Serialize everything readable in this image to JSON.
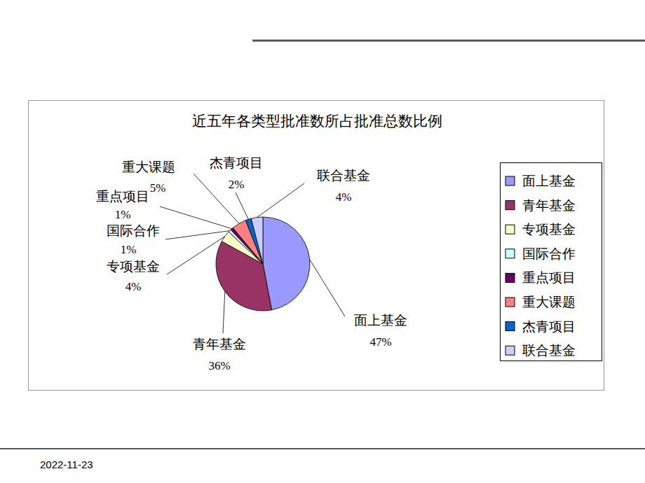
{
  "chart_data": {
    "type": "pie",
    "title": "近五年各类型批准数所占批准总数比例",
    "categories": [
      "面上基金",
      "青年基金",
      "专项基金",
      "国际合作",
      "重点项目",
      "重大课题",
      "杰青项目",
      "联合基金"
    ],
    "values": [
      47,
      36,
      4,
      1,
      1,
      5,
      2,
      4
    ],
    "value_labels": [
      "47%",
      "36%",
      "4%",
      "1%",
      "1%",
      "5%",
      "2%",
      "4%"
    ],
    "colors": [
      "#9999ff",
      "#993366",
      "#ffffcc",
      "#ccffff",
      "#660066",
      "#ff8080",
      "#0066cc",
      "#ccccff"
    ],
    "data_labels": true,
    "legend": "right"
  },
  "page": {
    "date": "2022-11-23"
  }
}
